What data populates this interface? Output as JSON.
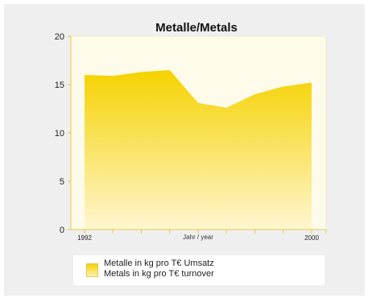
{
  "chart_data": {
    "type": "area",
    "title": "Metalle/Metals",
    "xlabel": "Jahr / year",
    "ylabel": "",
    "x": [
      1992,
      1993,
      1994,
      1995,
      1996,
      1997,
      1998,
      1999,
      2000
    ],
    "x_tick_labels": [
      "1992",
      "2000"
    ],
    "y_ticks": [
      0,
      5,
      10,
      15,
      20
    ],
    "ylim": [
      0,
      20
    ],
    "series": [
      {
        "name": "Metalle in kg pro T€ Umsatz / Metals in kg pro T€ turnover",
        "values": [
          16.0,
          15.9,
          16.3,
          16.5,
          13.1,
          12.6,
          14.0,
          14.8,
          15.2
        ]
      }
    ],
    "colors": {
      "fill_top": "#f5d200",
      "fill_bottom": "#fff6d0",
      "plot_bg": "#fffbea",
      "axis": "#e5c84a"
    },
    "grid": false
  },
  "legend": {
    "line1": "Metalle in kg pro T€ Umsatz",
    "line2": "Metals in kg pro T€ turnover"
  }
}
